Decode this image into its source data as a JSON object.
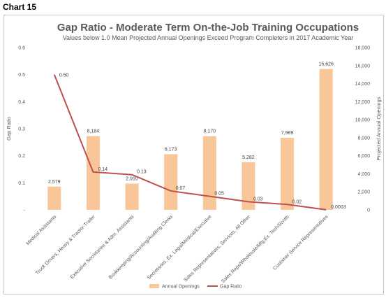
{
  "page_label": "Chart 15",
  "chart_data": {
    "type": "bar",
    "title": "Gap Ratio - Moderate Term On-the-Job Training Occupations",
    "subtitle": "Values below 1.0 Mean Projected Annual Openings Exceed Program Completers in 2017 Academic Year",
    "ylabel_left": "Gap Ratio",
    "ylabel_right": "Projected Annual Openings",
    "ylim_left": [
      0,
      0.6
    ],
    "ylim_right": [
      0,
      18000
    ],
    "left_ticks": [
      "-",
      "0.1",
      "0.2",
      "0.3",
      "0.4",
      "0.5",
      "0.6"
    ],
    "right_ticks": [
      "0",
      "2,000",
      "4,000",
      "6,000",
      "8,000",
      "10,000",
      "12,000",
      "14,000",
      "16,000",
      "18,000"
    ],
    "categories": [
      "Medical Assistants",
      "Truck Drivers, Heavy & Tractor-Trailer",
      "Executive Secretaries & Adm. Assistants",
      "Bookkeeping/Accounting/Auditing Clerks",
      "Secretaries, Ex. Legal/Medical/Executive",
      "Sales Representatives, Services, All Other",
      "Sales Reps/Wholesale/Mfg,Ex. Tech/Scntfc",
      "Customer Service Representatives"
    ],
    "series": [
      {
        "name": "Annual Openings",
        "type": "bar",
        "axis": "right",
        "values": [
          2579,
          8184,
          2910,
          6173,
          8170,
          5282,
          7989,
          15626
        ],
        "labels": [
          "2,579",
          "8,184",
          "2,910",
          "6,173",
          "8,170",
          "5,282",
          "7,989",
          "15,626"
        ]
      },
      {
        "name": "Gap Ratio",
        "type": "line",
        "axis": "left",
        "values": [
          0.5,
          0.14,
          0.13,
          0.07,
          0.05,
          0.03,
          0.02,
          0.0003
        ],
        "labels": [
          "0.50",
          "0.14",
          "0.13",
          "0.07",
          "0.05",
          "0.03",
          "0.02",
          "0.0003"
        ]
      }
    ],
    "legend_position": "bottom",
    "grid": false,
    "colors": {
      "bars": "#f8c698",
      "line": "#c0504d"
    }
  }
}
